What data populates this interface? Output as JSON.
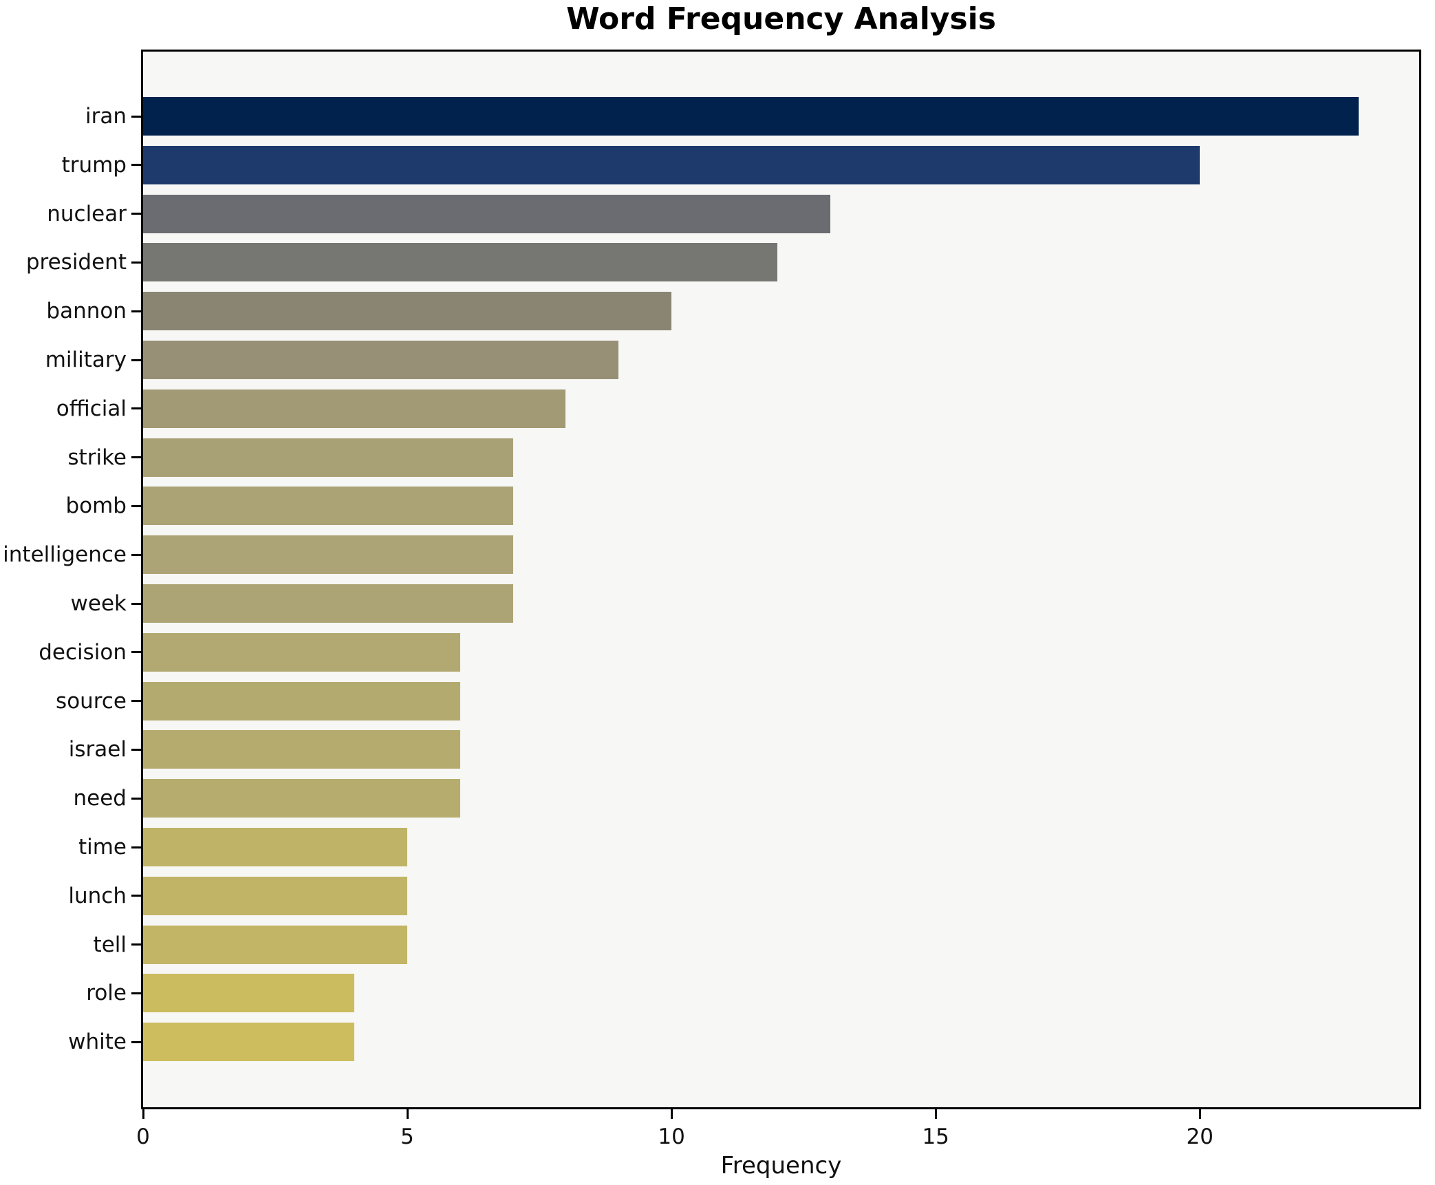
{
  "title": "Word Frequency Analysis",
  "chart_data": {
    "type": "bar",
    "orientation": "horizontal",
    "title": "Word Frequency Analysis",
    "xlabel": "Frequency",
    "ylabel": "",
    "categories": [
      "iran",
      "trump",
      "nuclear",
      "president",
      "bannon",
      "military",
      "official",
      "strike",
      "bomb",
      "intelligence",
      "week",
      "decision",
      "source",
      "israel",
      "need",
      "time",
      "lunch",
      "tell",
      "role",
      "white"
    ],
    "values": [
      23,
      20,
      13,
      12,
      10,
      9,
      8,
      7,
      7,
      7,
      7,
      6,
      6,
      6,
      6,
      5,
      5,
      5,
      4,
      4
    ],
    "bar_colors": [
      "#02224e",
      "#1e3a6c",
      "#6a6c71",
      "#767672",
      "#8a8573",
      "#979077",
      "#a29a75",
      "#a9a176",
      "#aba276",
      "#aca376",
      "#ada475",
      "#b2a972",
      "#b3aa70",
      "#b5ab6f",
      "#b6ac6e",
      "#bfb368",
      "#c1b466",
      "#c2b565",
      "#cbbc60",
      "#cdbd5f"
    ],
    "xlim": [
      0,
      24.15
    ],
    "x_ticks": [
      0,
      5,
      10,
      15,
      20
    ],
    "grid": false,
    "legend": null,
    "plot_background": "#f7f7f5",
    "figure_background": "#ffffff",
    "spine_color": "#000000"
  }
}
